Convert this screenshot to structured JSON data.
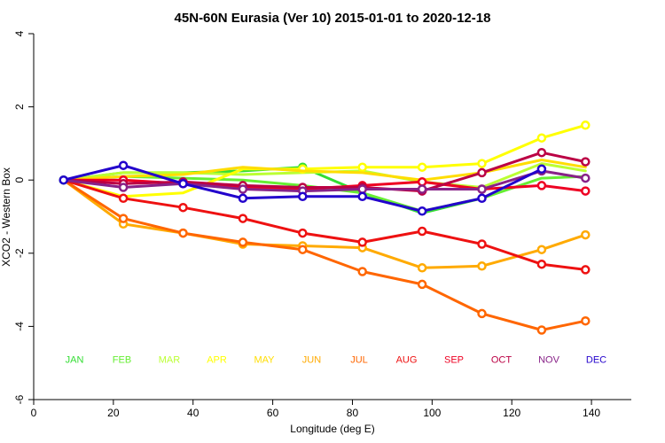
{
  "chart_data": {
    "type": "line",
    "title": "45N-60N Eurasia (Ver 10)   2015-01-01 to 2020-12-18",
    "xlabel": "Longitude (deg E)",
    "ylabel": "XCO2 - Western Box",
    "xlim": [
      0,
      150
    ],
    "ylim": [
      -6,
      4
    ],
    "xticks": [
      0,
      20,
      40,
      60,
      80,
      100,
      120,
      140
    ],
    "yticks": [
      -6,
      -4,
      -2,
      0,
      2,
      4
    ],
    "x": [
      7.5,
      22.5,
      37.5,
      52.5,
      67.5,
      82.5,
      97.5,
      112.5,
      127.5,
      138.5
    ],
    "legend_placement": "bottom",
    "series": [
      {
        "name": "JAN",
        "color": "#33dd33",
        "values": [
          0.0,
          0.2,
          0.2,
          0.25,
          0.35,
          -0.35,
          -0.9,
          -0.5,
          null,
          null
        ],
        "markers": [
          0,
          4
        ]
      },
      {
        "name": "FEB",
        "color": "#66ee33",
        "values": [
          0.0,
          0.1,
          0.05,
          0.0,
          -0.15,
          -0.35,
          -0.85,
          -0.5,
          0.05,
          0.1
        ],
        "markers": []
      },
      {
        "name": "MAR",
        "color": "#bbff33",
        "values": [
          0.0,
          0.2,
          0.2,
          0.15,
          0.2,
          0.25,
          -0.05,
          -0.2,
          0.45,
          0.25
        ],
        "markers": []
      },
      {
        "name": "APR",
        "color": "#ffff00",
        "values": [
          0.0,
          -0.45,
          -0.35,
          0.3,
          0.3,
          0.35,
          0.35,
          0.45,
          1.15,
          1.5
        ],
        "markers": [
          4,
          5,
          6,
          7,
          8,
          9
        ]
      },
      {
        "name": "MAY",
        "color": "#ffdd00",
        "values": [
          0.0,
          0.1,
          0.15,
          0.35,
          0.25,
          0.2,
          0.0,
          0.2,
          0.55,
          0.35
        ],
        "markers": []
      },
      {
        "name": "JUN",
        "color": "#ffaa00",
        "values": [
          0.0,
          -1.2,
          -1.45,
          -1.75,
          -1.8,
          -1.85,
          -2.4,
          -2.35,
          -1.9,
          -1.5
        ],
        "markers": [
          1,
          2,
          3,
          4,
          5,
          6,
          7,
          8,
          9
        ]
      },
      {
        "name": "JUL",
        "color": "#ff6600",
        "values": [
          0.0,
          -1.05,
          -1.45,
          -1.7,
          -1.9,
          -2.5,
          -2.85,
          -3.65,
          -4.1,
          -3.85
        ],
        "markers": [
          1,
          2,
          3,
          4,
          5,
          6,
          7,
          8,
          9
        ]
      },
      {
        "name": "AUG",
        "color": "#ee1111",
        "values": [
          0.0,
          -0.5,
          -0.75,
          -1.05,
          -1.45,
          -1.7,
          -1.4,
          -1.75,
          -2.3,
          -2.45
        ],
        "markers": [
          1,
          2,
          3,
          4,
          5,
          6,
          7,
          8,
          9
        ]
      },
      {
        "name": "SEP",
        "color": "#ee0022",
        "values": [
          0.0,
          0.0,
          -0.1,
          -0.2,
          -0.25,
          -0.15,
          -0.05,
          -0.25,
          -0.15,
          -0.3
        ],
        "markers": [
          1,
          2,
          3,
          4,
          5,
          6,
          7,
          8,
          9
        ]
      },
      {
        "name": "OCT",
        "color": "#bb0044",
        "values": [
          0.0,
          -0.1,
          -0.05,
          -0.15,
          -0.2,
          -0.2,
          -0.3,
          0.2,
          0.75,
          0.5
        ],
        "markers": [
          1,
          2,
          3,
          4,
          5,
          6,
          7,
          8,
          9
        ]
      },
      {
        "name": "NOV",
        "color": "#882288",
        "values": [
          0.0,
          -0.2,
          -0.1,
          -0.25,
          -0.3,
          -0.25,
          -0.25,
          -0.25,
          0.25,
          0.05
        ],
        "markers": [
          1,
          2,
          3,
          4,
          5,
          6,
          7,
          8,
          9
        ]
      },
      {
        "name": "DEC",
        "color": "#2200cc",
        "values": [
          0.0,
          0.4,
          -0.1,
          -0.5,
          -0.45,
          -0.45,
          -0.85,
          -0.5,
          0.3,
          null
        ],
        "markers": [
          0,
          1,
          2,
          3,
          4,
          5,
          6,
          7,
          8
        ]
      }
    ]
  }
}
